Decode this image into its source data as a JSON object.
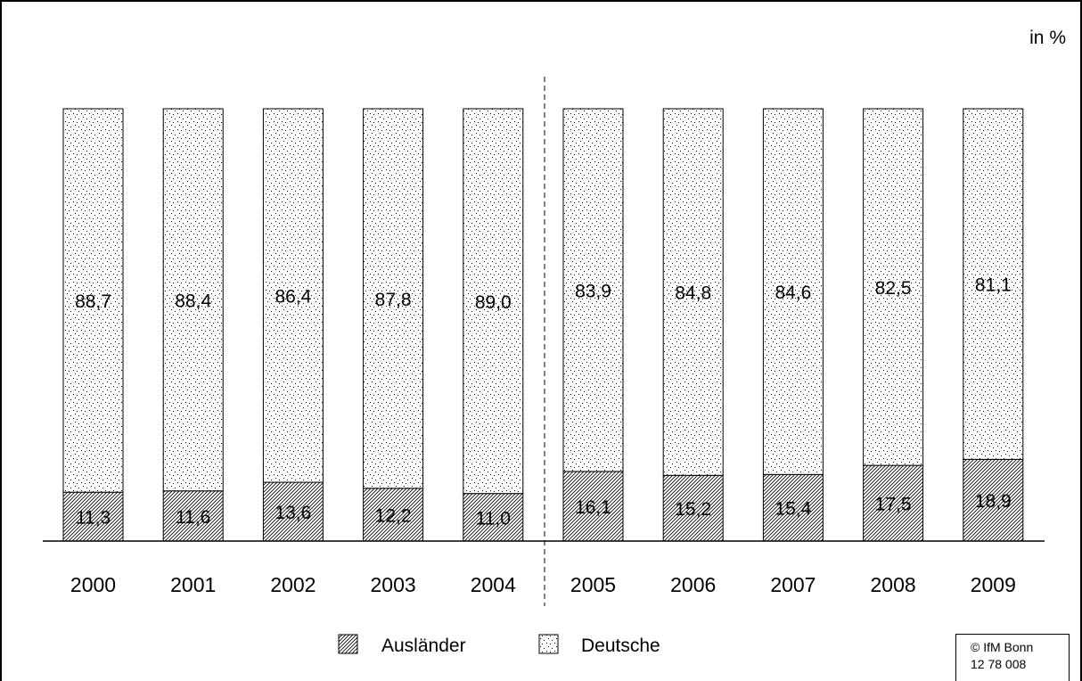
{
  "chart_data": {
    "type": "bar",
    "stacked": true,
    "percent_stacked": true,
    "unit_label": "in %",
    "categories": [
      "2000",
      "2001",
      "2002",
      "2003",
      "2004",
      "2005",
      "2006",
      "2007",
      "2008",
      "2009"
    ],
    "series": [
      {
        "name": "Ausländer",
        "values": [
          11.3,
          11.6,
          13.6,
          12.2,
          11.0,
          16.1,
          15.2,
          15.4,
          17.5,
          18.9
        ],
        "labels": [
          "11,3",
          "11,6",
          "13,6",
          "12,2",
          "11,0",
          "16,1",
          "15,2",
          "15,4",
          "17,5",
          "18,9"
        ],
        "pattern": "diagonal-hatch"
      },
      {
        "name": "Deutsche",
        "values": [
          88.7,
          88.4,
          86.4,
          87.8,
          89.0,
          83.9,
          84.8,
          84.6,
          82.5,
          81.1
        ],
        "labels": [
          "88,7",
          "88,4",
          "86,4",
          "87,8",
          "89,0",
          "83,9",
          "84,8",
          "84,6",
          "82,5",
          "81,1"
        ],
        "pattern": "dots"
      }
    ],
    "ylim": [
      0,
      100
    ],
    "grid": false,
    "divider_after_category": "2004",
    "legend_position": "bottom"
  },
  "footer": {
    "copyright_line1": "© IfM Bonn",
    "copyright_line2": "12  78  008"
  }
}
